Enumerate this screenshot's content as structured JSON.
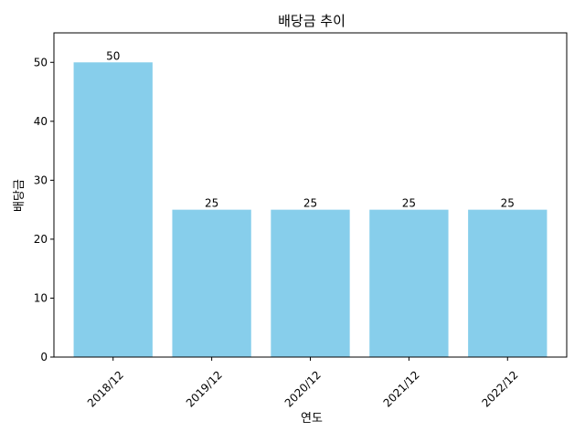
{
  "chart_data": {
    "type": "bar",
    "title": "배당금 추이",
    "xlabel": "연도",
    "ylabel": "배당금",
    "categories": [
      "2018/12",
      "2019/12",
      "2020/12",
      "2021/12",
      "2022/12"
    ],
    "values": [
      50,
      25,
      25,
      25,
      25
    ],
    "data_labels": [
      "50",
      "25",
      "25",
      "25",
      "25"
    ],
    "ylim": [
      0,
      55
    ],
    "yticks": [
      0,
      10,
      20,
      30,
      40,
      50
    ],
    "bar_color": "#87CEEB",
    "grid": false,
    "legend": "none",
    "xtick_rotation": "45 degrees"
  }
}
